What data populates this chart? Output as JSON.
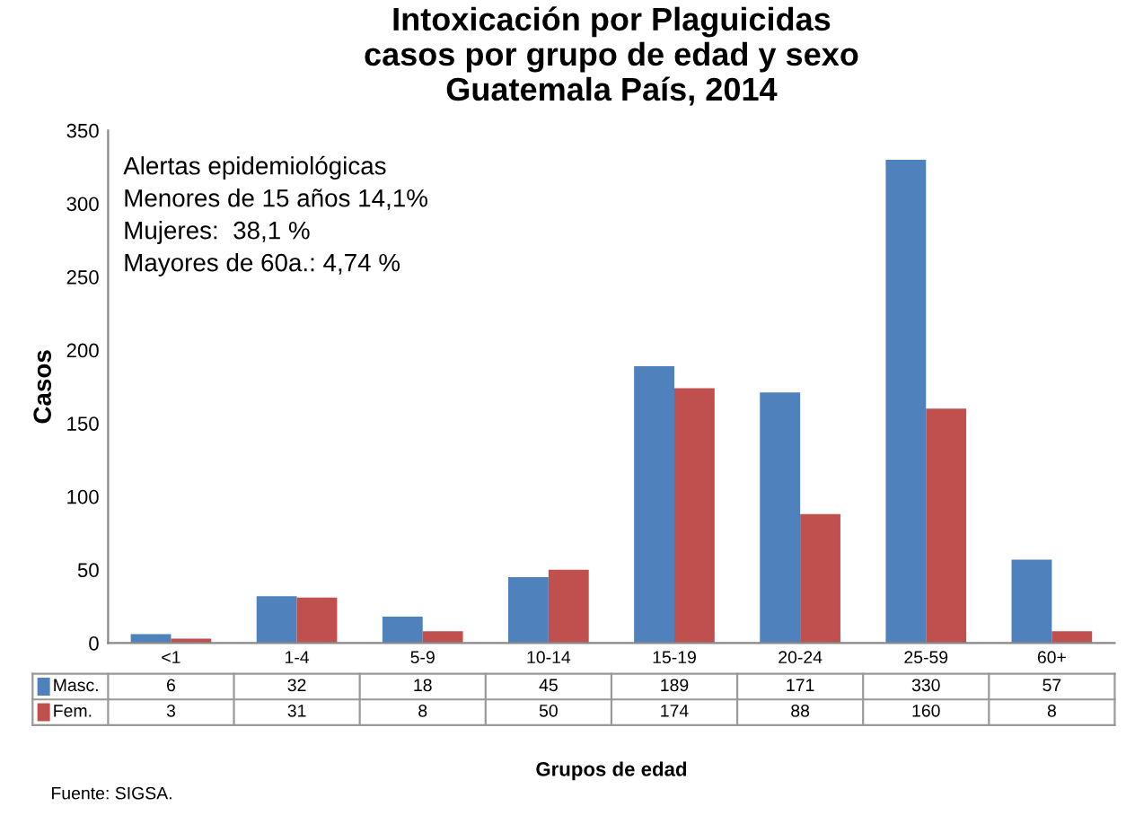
{
  "chart_data": {
    "type": "bar",
    "title": "Intoxicación por Plaguicidas\ncasos por grupo de edad y sexo\nGuatemala País, 2014",
    "xlabel": "Grupos de edad",
    "ylabel": "Casos",
    "categories": [
      "<1",
      "1-4",
      "5-9",
      "10-14",
      "15-19",
      "20-24",
      "25-59",
      "60+"
    ],
    "series": [
      {
        "name": "Masc.",
        "color": "#4f81bd",
        "values": [
          6,
          32,
          18,
          45,
          189,
          171,
          330,
          57
        ]
      },
      {
        "name": "Fem.",
        "color": "#c0504d",
        "values": [
          3,
          31,
          8,
          50,
          174,
          88,
          160,
          8
        ]
      }
    ],
    "ylim": [
      0,
      350
    ],
    "yticks": [
      0,
      50,
      100,
      150,
      200,
      250,
      300,
      350
    ],
    "grid": false,
    "legend": "bottom",
    "data_labels": true,
    "annotations": [
      "Alertas epidemiológicas\nMenores de 15 años 14,1%\nMujeres:  38,1 %\nMayores de 60a.: 4,74 %",
      "Fuente: SIGSA."
    ]
  }
}
